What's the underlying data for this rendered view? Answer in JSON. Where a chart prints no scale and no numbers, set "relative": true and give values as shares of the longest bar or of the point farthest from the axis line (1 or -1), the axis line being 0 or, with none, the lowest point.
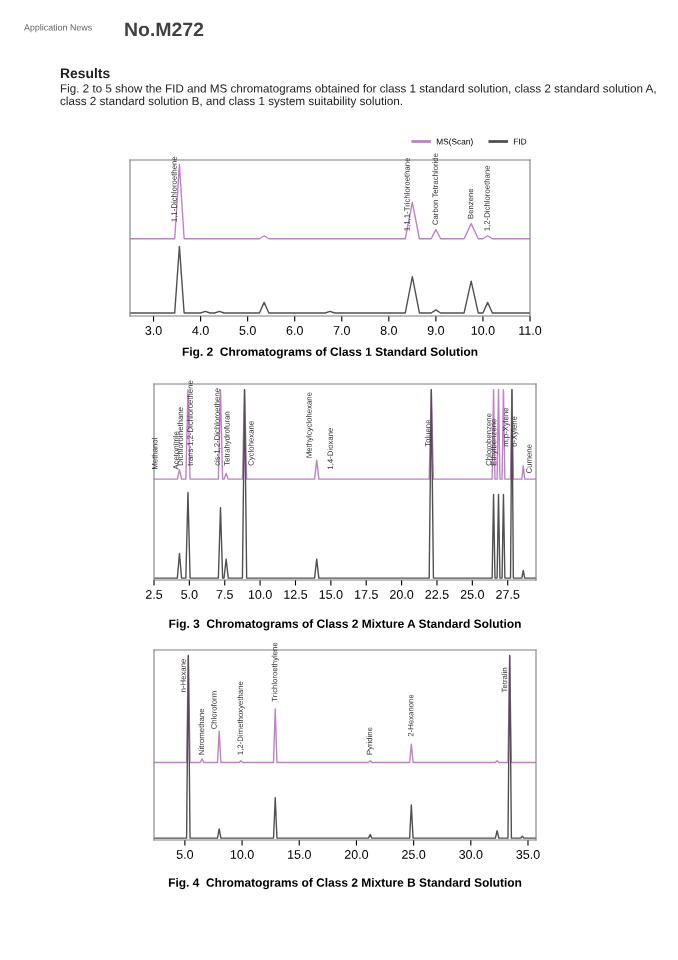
{
  "chart_data": [
    {
      "type": "line",
      "relative": true,
      "title": "Fig. 2  Chromatograms of Class 1 Standard Solution",
      "legend": "top right",
      "xlim": [
        2.5,
        11.0
      ],
      "xticks": [
        {
          "value": 3,
          "label": "3.0"
        },
        {
          "value": 4,
          "label": "4.0"
        },
        {
          "value": 5,
          "label": "5.0"
        },
        {
          "value": 6,
          "label": "6.0"
        },
        {
          "value": 7,
          "label": "7.0"
        },
        {
          "value": 8,
          "label": "8.0"
        },
        {
          "value": 9,
          "label": "9.0"
        },
        {
          "value": 10,
          "label": "10.0"
        },
        {
          "value": 11,
          "label": "11.0"
        }
      ],
      "annotations": [
        "Application News",
        "No.M272",
        "Results",
        "Fig. 2 to 5 show the FID and MS chromatograms obtained for class 1 standard solution, class 2 standard solution A, class 2 standard solution B, and class 1 system suitability solution.",
        {
          "text": "1,1-Dichloroethene",
          "x": 3.45,
          "y": 0.62
        },
        {
          "text": "1,1,1-Trichloroethane",
          "x": 8.4,
          "y": 0.56
        },
        {
          "text": "Carbon Tetrachloride",
          "x": 9.0,
          "y": 0.6
        },
        {
          "text": "Benzene",
          "x": 9.75,
          "y": 0.64
        },
        {
          "text": "1,2-Dichloroethane",
          "x": 10.1,
          "y": 0.56
        }
      ],
      "series": [
        {
          "name": "MS(Scan)",
          "color": "#c080c8",
          "x": [
            2.5,
            3.45,
            3.55,
            3.65,
            5.25,
            5.35,
            5.45,
            8.35,
            8.5,
            8.65,
            8.9,
            9.0,
            9.1,
            9.6,
            9.75,
            9.9,
            10.0,
            10.1,
            10.2,
            11.0
          ],
          "values": [
            0.51,
            0.51,
            1.0,
            0.51,
            0.51,
            0.53,
            0.51,
            0.51,
            0.75,
            0.51,
            0.51,
            0.57,
            0.51,
            0.51,
            0.61,
            0.51,
            0.51,
            0.53,
            0.51,
            0.51
          ]
        },
        {
          "name": "FID",
          "color": "#505050",
          "x": [
            2.5,
            3.45,
            3.55,
            3.65,
            4.0,
            4.1,
            4.2,
            4.3,
            4.4,
            4.5,
            5.25,
            5.35,
            5.45,
            6.65,
            6.75,
            6.85,
            8.35,
            8.5,
            8.65,
            8.9,
            9.0,
            9.1,
            9.6,
            9.75,
            9.9,
            10.0,
            10.1,
            10.2,
            11.0
          ],
          "values": [
            0.02,
            0.02,
            0.46,
            0.02,
            0.02,
            0.03,
            0.02,
            0.02,
            0.03,
            0.02,
            0.02,
            0.09,
            0.02,
            0.02,
            0.03,
            0.02,
            0.02,
            0.26,
            0.02,
            0.02,
            0.04,
            0.02,
            0.02,
            0.23,
            0.02,
            0.02,
            0.09,
            0.02,
            0.02
          ]
        }
      ]
    },
    {
      "type": "line",
      "relative": true,
      "title": "Fig. 3  Chromatograms of Class 2 Mixture A Standard Solution",
      "xlim": [
        2.5,
        29.5
      ],
      "xticks": [
        2.5,
        {
          "value": 5,
          "label": "5.0"
        },
        7.5,
        {
          "value": 10,
          "label": "10.0"
        },
        12.5,
        {
          "value": 15,
          "label": "15.0"
        },
        17.5,
        {
          "value": 20,
          "label": "20.0"
        },
        22.5,
        {
          "value": 25,
          "label": "25.0"
        },
        27.5
      ],
      "annotations": [
        {
          "text": "Methanol",
          "x": 2.6,
          "y": 0.58
        },
        {
          "text": "Acetonitrile",
          "x": 4.1,
          "y": 0.58
        },
        {
          "text": "Dichloromethane",
          "x": 4.4,
          "y": 0.6
        },
        {
          "text": "trans-1,2-Dichloroethene",
          "x": 5.1,
          "y": 0.6
        },
        {
          "text": "cis-1,2-Dichloroethene",
          "x": 7.0,
          "y": 0.6
        },
        {
          "text": "Tetrahydrofuran",
          "x": 7.7,
          "y": 0.6
        },
        {
          "text": "Cyclohexane",
          "x": 9.4,
          "y": 0.6
        },
        {
          "text": "Methylcyclohexane",
          "x": 13.5,
          "y": 0.64
        },
        {
          "text": "1,4-Dioxane",
          "x": 15.0,
          "y": 0.58
        },
        {
          "text": "Toluene",
          "x": 21.9,
          "y": 0.7
        },
        {
          "text": "Chlorobenzene",
          "x": 26.2,
          "y": 0.6
        },
        {
          "text": "Ethylbenzene",
          "x": 26.55,
          "y": 0.6
        },
        {
          "text": "m,p-Xylene",
          "x": 27.4,
          "y": 0.7
        },
        {
          "text": "o-Xylene",
          "x": 28.0,
          "y": 0.7
        },
        {
          "text": "Cumene",
          "x": 29.05,
          "y": 0.56
        }
      ],
      "series": [
        {
          "color": "#c080c8",
          "x": [
            2.5,
            4.15,
            4.3,
            4.45,
            4.75,
            4.9,
            5.05,
            7.05,
            7.2,
            7.35,
            7.45,
            7.6,
            7.75,
            8.75,
            8.9,
            9.05,
            13.85,
            14.0,
            14.15,
            21.95,
            22.1,
            22.25,
            26.4,
            26.5,
            26.6,
            26.75,
            26.85,
            26.95,
            27.1,
            27.2,
            27.3,
            27.7,
            27.8,
            27.9,
            28.5,
            28.6,
            28.7,
            29.5
          ],
          "values": [
            0.53,
            0.53,
            0.58,
            0.53,
            0.53,
            1.0,
            0.53,
            0.53,
            1.0,
            0.53,
            0.53,
            0.56,
            0.53,
            0.53,
            1.0,
            0.53,
            0.53,
            0.63,
            0.53,
            0.53,
            1.0,
            0.53,
            0.53,
            1.0,
            0.53,
            0.53,
            1.0,
            0.53,
            0.53,
            1.0,
            0.53,
            0.53,
            1.0,
            0.53,
            0.53,
            0.6,
            0.53,
            0.53
          ]
        },
        {
          "color": "#505050",
          "x": [
            2.5,
            4.15,
            4.3,
            4.45,
            4.75,
            4.9,
            5.05,
            7.05,
            7.2,
            7.35,
            7.45,
            7.6,
            7.75,
            8.75,
            8.9,
            9.05,
            13.85,
            14.0,
            14.15,
            21.95,
            22.1,
            22.25,
            26.4,
            26.5,
            26.6,
            26.75,
            26.85,
            26.95,
            27.1,
            27.2,
            27.3,
            27.7,
            27.8,
            27.9,
            28.5,
            28.6,
            28.7,
            29.5
          ],
          "values": [
            0.01,
            0.01,
            0.14,
            0.01,
            0.01,
            0.46,
            0.01,
            0.01,
            0.38,
            0.01,
            0.01,
            0.11,
            0.01,
            0.01,
            1.0,
            0.01,
            0.01,
            0.11,
            0.01,
            0.01,
            1.0,
            0.01,
            0.01,
            0.45,
            0.01,
            0.01,
            0.45,
            0.01,
            0.01,
            0.45,
            0.01,
            0.01,
            1.0,
            0.01,
            0.01,
            0.05,
            0.01,
            0.01
          ]
        }
      ]
    },
    {
      "type": "line",
      "relative": true,
      "title": "Fig. 4  Chromatograms of Class 2 Mixture B Standard Solution",
      "xlim": [
        2.3,
        35.7
      ],
      "xticks": [
        {
          "value": 5,
          "label": "5.0"
        },
        {
          "value": 10,
          "label": "10.0"
        },
        {
          "value": 15,
          "label": "15.0"
        },
        {
          "value": 20,
          "label": "20.0"
        },
        {
          "value": 25,
          "label": "25.0"
        },
        {
          "value": 30,
          "label": "30.0"
        },
        {
          "value": 35,
          "label": "35.0"
        }
      ],
      "annotations": [
        {
          "text": "n-Hexane",
          "x": 4.9,
          "y": 0.8
        },
        {
          "text": "Nitromethane",
          "x": 6.5,
          "y": 0.46
        },
        {
          "text": "Chloroform",
          "x": 7.6,
          "y": 0.6
        },
        {
          "text": "1,2-Dimethoxyethane",
          "x": 9.9,
          "y": 0.46
        },
        {
          "text": "Trichloroethylene",
          "x": 12.9,
          "y": 0.75
        },
        {
          "text": "Pyridine",
          "x": 21.2,
          "y": 0.46
        },
        {
          "text": "2-Hexanone",
          "x": 24.8,
          "y": 0.56
        },
        {
          "text": "Tetralin",
          "x": 33.0,
          "y": 0.8
        }
      ],
      "series": [
        {
          "color": "#c080c8",
          "x": [
            2.3,
            5.15,
            5.3,
            5.45,
            6.35,
            6.5,
            6.65,
            7.85,
            8.0,
            8.15,
            9.75,
            9.9,
            10.05,
            12.75,
            12.9,
            13.05,
            21.05,
            21.2,
            21.35,
            24.65,
            24.8,
            24.95,
            32.15,
            32.3,
            32.45,
            33.25,
            33.4,
            33.55,
            34.35,
            34.5,
            34.65,
            35.7
          ],
          "values": [
            0.42,
            0.42,
            1.0,
            0.42,
            0.42,
            0.44,
            0.42,
            0.42,
            0.59,
            0.42,
            0.42,
            0.43,
            0.42,
            0.42,
            0.71,
            0.42,
            0.42,
            0.43,
            0.42,
            0.42,
            0.52,
            0.42,
            0.42,
            0.43,
            0.42,
            0.42,
            1.0,
            0.42,
            0.42,
            0.42,
            0.42,
            0.42
          ]
        },
        {
          "color": "#505050",
          "x": [
            2.3,
            5.15,
            5.3,
            5.45,
            6.35,
            6.5,
            6.65,
            7.85,
            8.0,
            8.15,
            9.75,
            9.9,
            10.05,
            12.75,
            12.9,
            13.05,
            21.05,
            21.2,
            21.35,
            24.65,
            24.8,
            24.95,
            32.15,
            32.3,
            32.45,
            33.25,
            33.4,
            33.55,
            34.35,
            34.5,
            34.65,
            35.7
          ],
          "values": [
            0.01,
            0.01,
            1.0,
            0.01,
            0.01,
            0.01,
            0.01,
            0.01,
            0.06,
            0.01,
            0.01,
            0.01,
            0.01,
            0.01,
            0.23,
            0.01,
            0.01,
            0.03,
            0.01,
            0.01,
            0.19,
            0.01,
            0.01,
            0.05,
            0.01,
            0.01,
            1.0,
            0.01,
            0.01,
            0.02,
            0.01,
            0.01
          ]
        }
      ]
    }
  ]
}
